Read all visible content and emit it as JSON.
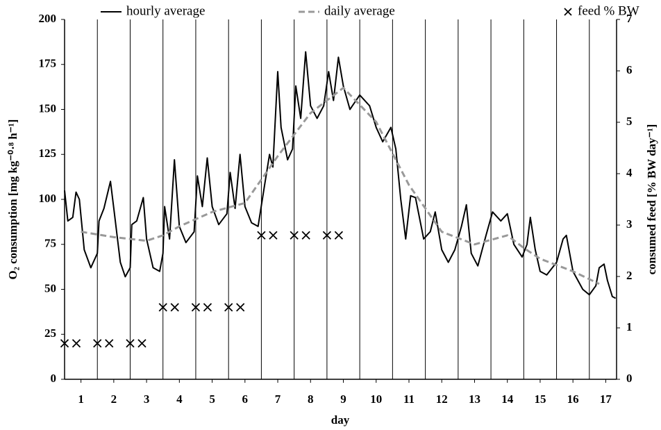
{
  "chart_data": {
    "type": "line",
    "xlabel": "day",
    "ylabel": "O₂ consumption [mg kg⁻⁰·⁸ h⁻¹]",
    "y2label": "consumed feed [% BW day⁻¹]",
    "xlim": [
      0.5,
      17.33
    ],
    "xticks": [
      1,
      2,
      3,
      4,
      5,
      6,
      7,
      8,
      9,
      10,
      11,
      12,
      13,
      14,
      15,
      16,
      17
    ],
    "xgrid": [
      1.5,
      2.5,
      3.5,
      4.5,
      5.5,
      6.5,
      7.5,
      8.5,
      9.5,
      10.5,
      11.5,
      12.5,
      13.5,
      14.5,
      15.5,
      16.5
    ],
    "ylim": [
      0,
      200
    ],
    "yticks": [
      0,
      25,
      50,
      75,
      100,
      125,
      150,
      175,
      200
    ],
    "y2lim": [
      0,
      7
    ],
    "y2ticks": [
      0,
      1,
      2,
      3,
      4,
      5,
      6,
      7
    ],
    "legend": "top",
    "series": [
      {
        "name": "hourly average",
        "color": "#000000",
        "style": "solid",
        "x": [
          0.5,
          0.6,
          0.75,
          0.85,
          0.95,
          1.1,
          1.3,
          1.5,
          1.55,
          1.7,
          1.9,
          2.0,
          2.2,
          2.35,
          2.5,
          2.55,
          2.7,
          2.9,
          3.0,
          3.2,
          3.4,
          3.5,
          3.55,
          3.7,
          3.85,
          4.0,
          4.2,
          4.45,
          4.55,
          4.7,
          4.85,
          5.0,
          5.2,
          5.45,
          5.55,
          5.7,
          5.85,
          6.0,
          6.2,
          6.4,
          6.6,
          6.75,
          6.85,
          7.0,
          7.1,
          7.3,
          7.45,
          7.55,
          7.7,
          7.85,
          8.0,
          8.2,
          8.4,
          8.55,
          8.7,
          8.85,
          9.0,
          9.2,
          9.5,
          9.8,
          10.0,
          10.2,
          10.45,
          10.6,
          10.75,
          10.9,
          11.05,
          11.2,
          11.45,
          11.65,
          11.8,
          12.0,
          12.2,
          12.4,
          12.6,
          12.75,
          12.9,
          13.1,
          13.35,
          13.55,
          13.8,
          14.0,
          14.2,
          14.45,
          14.6,
          14.7,
          14.85,
          15.0,
          15.2,
          15.5,
          15.7,
          15.8,
          16.0,
          16.3,
          16.5,
          16.7,
          16.8,
          16.95,
          17.05,
          17.2,
          17.3
        ],
        "values": [
          105,
          88,
          90,
          104,
          100,
          72,
          62,
          70,
          88,
          95,
          110,
          95,
          65,
          57,
          62,
          86,
          88,
          101,
          78,
          62,
          60,
          70,
          96,
          78,
          122,
          85,
          76,
          82,
          113,
          96,
          123,
          96,
          86,
          92,
          115,
          95,
          125,
          96,
          87,
          85,
          108,
          125,
          118,
          171,
          140,
          122,
          128,
          163,
          145,
          182,
          152,
          145,
          152,
          171,
          155,
          179,
          163,
          150,
          158,
          152,
          140,
          132,
          140,
          128,
          100,
          78,
          102,
          101,
          78,
          82,
          93,
          72,
          65,
          72,
          85,
          97,
          70,
          63,
          80,
          93,
          88,
          92,
          75,
          68,
          75,
          90,
          72,
          60,
          58,
          65,
          78,
          80,
          60,
          50,
          47,
          52,
          62,
          64,
          55,
          46,
          45
        ]
      },
      {
        "name": "daily average",
        "color": "#999999",
        "style": "dashed",
        "x": [
          1,
          2,
          3,
          3.5,
          4,
          5,
          6,
          7,
          8,
          9,
          10,
          11,
          12,
          13,
          14,
          14.5,
          15,
          16,
          16.8
        ],
        "values": [
          82,
          79,
          77,
          80,
          85,
          93,
          98,
          124,
          148,
          162,
          143,
          108,
          82,
          75,
          80,
          73,
          67,
          60,
          53
        ]
      },
      {
        "name": "feed % BW",
        "color": "#000000",
        "marker": "x",
        "axis": "y2",
        "x": [
          0.5,
          0.86,
          1.5,
          1.86,
          2.5,
          2.86,
          3.5,
          3.86,
          4.5,
          4.86,
          5.5,
          5.86,
          6.5,
          6.86,
          7.5,
          7.86,
          8.5,
          8.86
        ],
        "values": [
          0.7,
          0.7,
          0.7,
          0.7,
          0.7,
          0.7,
          1.4,
          1.4,
          1.4,
          1.4,
          1.4,
          1.4,
          2.8,
          2.8,
          2.8,
          2.8,
          2.8,
          2.8
        ]
      }
    ]
  }
}
